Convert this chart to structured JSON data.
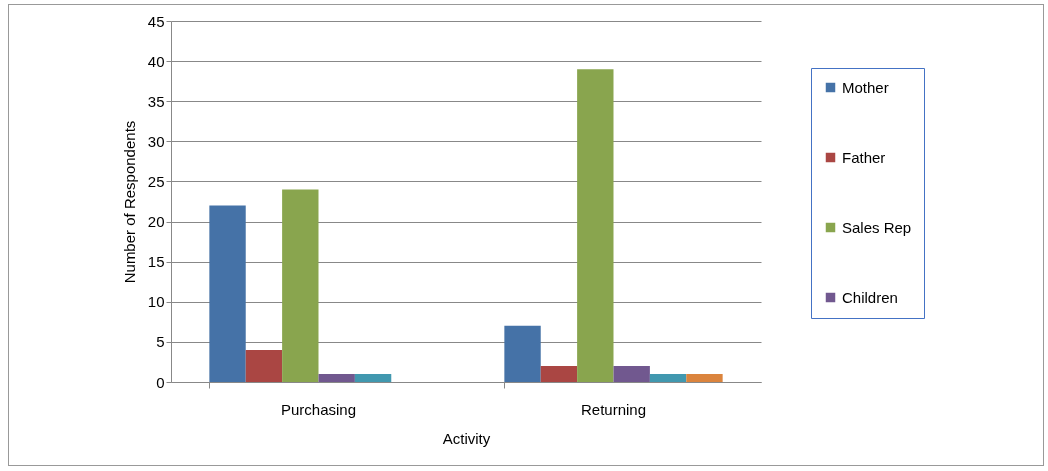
{
  "chart_data": {
    "type": "bar",
    "xlabel": "Activity",
    "ylabel": "Number of Respondents",
    "categories": [
      "Purchasing",
      "Returning"
    ],
    "series": [
      {
        "name": "Mother",
        "color": "#4572a7",
        "values": [
          22,
          7
        ]
      },
      {
        "name": "Father",
        "color": "#aa4643",
        "values": [
          4,
          2
        ]
      },
      {
        "name": "Sales Rep",
        "color": "#89a54e",
        "values": [
          24,
          39
        ]
      },
      {
        "name": "Children",
        "color": "#71588f",
        "values": [
          1,
          2
        ]
      },
      {
        "color": "#4198af",
        "values": [
          1,
          1
        ]
      },
      {
        "color": "#db843d",
        "values": [
          null,
          1
        ]
      }
    ],
    "ylim": [
      0,
      45
    ],
    "yticks": [
      0,
      5,
      10,
      15,
      20,
      25,
      30,
      35,
      40,
      45
    ],
    "grid": "y",
    "legend": "right"
  }
}
